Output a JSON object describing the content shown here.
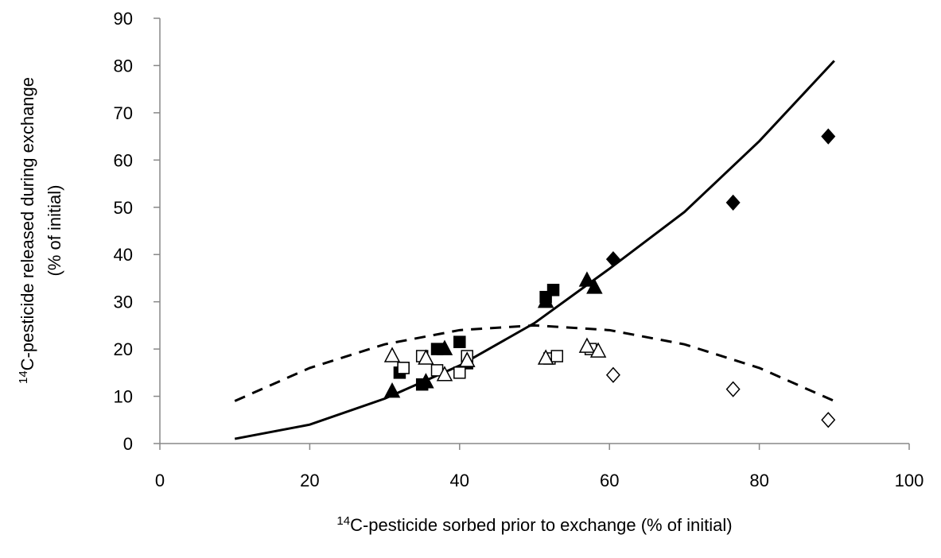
{
  "chart_data": {
    "type": "scatter",
    "x_label_sup": "14",
    "x_label": "C-pesticide sorbed prior to exchange (% of initial)",
    "y_label_sup": "14",
    "y_label": "C-pesticide released during exchange",
    "y_label_2": "(% of initial)",
    "xlim": [
      0,
      100
    ],
    "xticks": [
      0,
      20,
      40,
      60,
      80,
      100
    ],
    "ylim": [
      0,
      90
    ],
    "yticks": [
      0,
      10,
      20,
      30,
      40,
      50,
      60,
      70,
      80,
      90
    ],
    "grid": false,
    "series": [
      {
        "kind": "line",
        "dash": false,
        "color": "#000000",
        "x": [
          10,
          20,
          30,
          40,
          50,
          60,
          70,
          80,
          90
        ],
        "values": [
          1,
          4,
          9.5,
          16.5,
          25.5,
          37,
          49,
          64,
          81
        ]
      },
      {
        "kind": "line",
        "dash": true,
        "color": "#000000",
        "x": [
          10,
          20,
          30,
          40,
          50,
          60,
          70,
          80,
          90
        ],
        "values": [
          9,
          16,
          21,
          24,
          25,
          24,
          21,
          16,
          9
        ]
      },
      {
        "kind": "points",
        "marker": "diamond",
        "filled": true,
        "color": "#000000",
        "x": [
          60.5,
          76.5,
          89.2
        ],
        "values": [
          39,
          51,
          65
        ]
      },
      {
        "kind": "points",
        "marker": "diamond",
        "filled": false,
        "color": "#000000",
        "x": [
          60.5,
          76.5,
          89.2
        ],
        "values": [
          14.5,
          11.5,
          5
        ]
      },
      {
        "kind": "points",
        "marker": "square",
        "filled": true,
        "color": "#000000",
        "x": [
          32,
          32.5,
          35,
          37,
          40,
          41,
          51.5,
          52.5
        ],
        "values": [
          15,
          16,
          12.5,
          20,
          21.5,
          17,
          31,
          32.5
        ]
      },
      {
        "kind": "points",
        "marker": "square",
        "filled": false,
        "color": "#000000",
        "x": [
          32.5,
          35,
          37,
          40,
          41,
          52,
          53,
          57.5
        ],
        "values": [
          16,
          18.5,
          15.5,
          15,
          18.5,
          18,
          18.5,
          20
        ]
      },
      {
        "kind": "points",
        "marker": "triangle",
        "filled": true,
        "color": "#000000",
        "x": [
          31,
          35.5,
          38,
          41,
          51.5,
          57,
          58
        ],
        "values": [
          11,
          13,
          20,
          17.5,
          30,
          34.5,
          33
        ]
      },
      {
        "kind": "points",
        "marker": "triangle",
        "filled": false,
        "color": "#000000",
        "x": [
          31,
          35.5,
          38,
          41,
          51.5,
          57,
          58.5
        ],
        "values": [
          18.5,
          18,
          14.5,
          17.5,
          18,
          20.5,
          19.5
        ]
      }
    ]
  }
}
